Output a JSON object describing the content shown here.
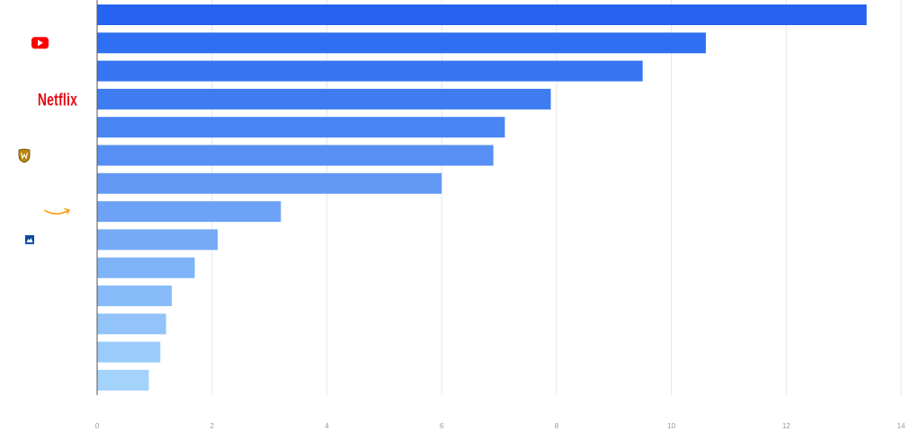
{
  "chart_data": {
    "type": "bar",
    "orientation": "horizontal",
    "title": "",
    "xlabel": "",
    "ylabel": "",
    "xlim": [
      0,
      14
    ],
    "x_ticks": [
      0,
      2,
      4,
      6,
      8,
      10,
      12,
      14
    ],
    "grid": "vertical",
    "categories": [
      "",
      "YouTube",
      "",
      "Netflix",
      "",
      "Warner Bros.",
      "",
      "Amazon",
      "Paramount",
      "",
      "",
      "",
      "",
      ""
    ],
    "category_icons": [
      "",
      "youtube-logo-icon",
      "",
      "netflix-logo-icon",
      "",
      "warner-bros-shield-icon",
      "",
      "amazon-smile-icon",
      "paramount-logo-icon",
      "",
      "",
      "",
      "",
      ""
    ],
    "values": [
      13.4,
      10.6,
      9.5,
      7.9,
      7.1,
      6.9,
      6.0,
      3.2,
      2.1,
      1.7,
      1.3,
      1.2,
      1.1,
      0.9
    ],
    "colors": [
      "#2563f0",
      "#2f6ff3",
      "#3875f2",
      "#3f7cf2",
      "#4985f3",
      "#578ff4",
      "#6399f5",
      "#6ea2f6",
      "#76aaf7",
      "#7fb3f8",
      "#88bbf9",
      "#92c3f9",
      "#9acbfa",
      "#a3d2fb"
    ]
  }
}
